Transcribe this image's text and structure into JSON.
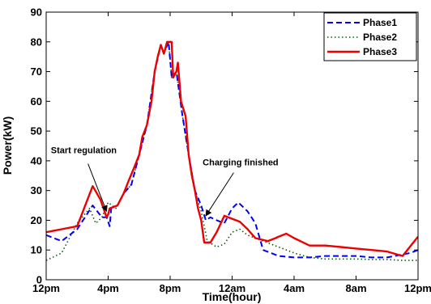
{
  "chart_data": {
    "type": "line",
    "title": "",
    "xlabel": "Time(hour)",
    "ylabel": "Power(kW)",
    "xlim": [
      0,
      24
    ],
    "ylim": [
      0,
      90
    ],
    "xticks": [
      {
        "value": 0,
        "label": "12pm"
      },
      {
        "value": 4,
        "label": "4pm"
      },
      {
        "value": 8,
        "label": "8pm"
      },
      {
        "value": 12,
        "label": "12am"
      },
      {
        "value": 16,
        "label": "4am"
      },
      {
        "value": 20,
        "label": "8am"
      },
      {
        "value": 24,
        "label": "12pm"
      }
    ],
    "yticks": [
      0,
      10,
      20,
      30,
      40,
      50,
      60,
      70,
      80,
      90
    ],
    "grid": false,
    "legend_position": "top-right",
    "series": [
      {
        "name": "Phase1",
        "color": "#0000ff",
        "dash": "dashed",
        "points": [
          [
            0,
            15
          ],
          [
            1,
            13
          ],
          [
            2,
            17
          ],
          [
            3,
            25
          ],
          [
            3.6,
            21
          ],
          [
            3.9,
            21
          ],
          [
            4.1,
            18
          ],
          [
            4.2,
            24
          ],
          [
            4.6,
            25
          ],
          [
            5,
            29
          ],
          [
            5.5,
            32
          ],
          [
            6,
            42
          ],
          [
            6.5,
            52
          ],
          [
            7,
            70
          ],
          [
            7.4,
            79
          ],
          [
            7.6,
            76
          ],
          [
            7.9,
            80
          ],
          [
            8.1,
            68
          ],
          [
            8.4,
            70
          ],
          [
            8.8,
            55
          ],
          [
            9.2,
            42
          ],
          [
            9.6,
            30
          ],
          [
            10,
            25
          ],
          [
            10.3,
            20
          ],
          [
            10.6,
            21
          ],
          [
            11,
            20
          ],
          [
            11.5,
            19
          ],
          [
            12,
            24
          ],
          [
            12.4,
            26
          ],
          [
            13,
            23
          ],
          [
            13.5,
            19
          ],
          [
            14,
            10
          ],
          [
            15,
            8
          ],
          [
            16,
            7.5
          ],
          [
            17,
            7.5
          ],
          [
            18,
            8
          ],
          [
            19,
            8
          ],
          [
            20,
            8
          ],
          [
            21,
            7.5
          ],
          [
            22,
            7.5
          ],
          [
            23.5,
            9
          ],
          [
            24,
            10
          ]
        ]
      },
      {
        "name": "Phase2",
        "color": "#006400",
        "dash": "dotted",
        "points": [
          [
            0,
            6.5
          ],
          [
            1,
            9
          ],
          [
            2,
            19
          ],
          [
            2.8,
            24
          ],
          [
            3.2,
            19
          ],
          [
            3.6,
            21
          ],
          [
            4,
            26
          ],
          [
            4.5,
            24
          ],
          [
            5,
            29
          ],
          [
            5.5,
            32
          ],
          [
            6,
            42
          ],
          [
            6.5,
            52
          ],
          [
            7,
            70
          ],
          [
            7.4,
            79
          ],
          [
            7.6,
            76
          ],
          [
            7.9,
            80
          ],
          [
            8.1,
            68
          ],
          [
            8.4,
            70
          ],
          [
            8.8,
            55
          ],
          [
            9.2,
            42
          ],
          [
            9.6,
            30
          ],
          [
            10,
            23
          ],
          [
            10.4,
            13
          ],
          [
            11,
            11
          ],
          [
            11.5,
            12
          ],
          [
            12,
            16
          ],
          [
            12.5,
            17
          ],
          [
            13,
            15
          ],
          [
            14,
            13
          ],
          [
            15,
            11
          ],
          [
            16,
            9
          ],
          [
            17,
            7.5
          ],
          [
            18,
            7
          ],
          [
            19,
            7
          ],
          [
            20,
            7
          ],
          [
            21,
            6.8
          ],
          [
            22,
            6.8
          ],
          [
            23,
            6.5
          ],
          [
            24,
            6.5
          ]
        ]
      },
      {
        "name": "Phase3",
        "color": "#ee0000",
        "dash": "solid",
        "points": [
          [
            0,
            16
          ],
          [
            0.5,
            16.5
          ],
          [
            1,
            17
          ],
          [
            2,
            18
          ],
          [
            3,
            31.5
          ],
          [
            3.5,
            27
          ],
          [
            3.9,
            21
          ],
          [
            4,
            22
          ],
          [
            4.1,
            24
          ],
          [
            4.6,
            25
          ],
          [
            5,
            29
          ],
          [
            5.3,
            33
          ],
          [
            5.7,
            38
          ],
          [
            6,
            42
          ],
          [
            6.2,
            48
          ],
          [
            6.5,
            52
          ],
          [
            6.8,
            60
          ],
          [
            7,
            70
          ],
          [
            7.2,
            75
          ],
          [
            7.4,
            79
          ],
          [
            7.6,
            76
          ],
          [
            7.8,
            80
          ],
          [
            8.1,
            80
          ],
          [
            8.2,
            68
          ],
          [
            8.4,
            70
          ],
          [
            8.5,
            73
          ],
          [
            8.7,
            60
          ],
          [
            9,
            55
          ],
          [
            9.2,
            42
          ],
          [
            9.4,
            35
          ],
          [
            9.6,
            30
          ],
          [
            9.8,
            24
          ],
          [
            10,
            20
          ],
          [
            10.2,
            12.5
          ],
          [
            10.6,
            12.5
          ],
          [
            11,
            16
          ],
          [
            11.5,
            21.5
          ],
          [
            12,
            20.5
          ],
          [
            12.5,
            19.5
          ],
          [
            13,
            17
          ],
          [
            13.5,
            14
          ],
          [
            14.3,
            13
          ],
          [
            14.8,
            14
          ],
          [
            15,
            14.5
          ],
          [
            15.5,
            15.5
          ],
          [
            16,
            14
          ],
          [
            17,
            11.5
          ],
          [
            18,
            11.5
          ],
          [
            19,
            11
          ],
          [
            20,
            10.5
          ],
          [
            21,
            10
          ],
          [
            22,
            9.5
          ],
          [
            23,
            8
          ],
          [
            24,
            14.5
          ]
        ]
      }
    ],
    "annotations": [
      {
        "text": "Start regulation",
        "text_at": [
          0.3,
          42.5
        ],
        "arrow_from": [
          2.7,
          39
        ],
        "arrow_to": [
          3.9,
          23
        ]
      },
      {
        "text": "Charging finished",
        "text_at": [
          10.1,
          38.5
        ],
        "arrow_from": [
          12.1,
          36
        ],
        "arrow_to": [
          10.3,
          21.5
        ]
      }
    ]
  }
}
